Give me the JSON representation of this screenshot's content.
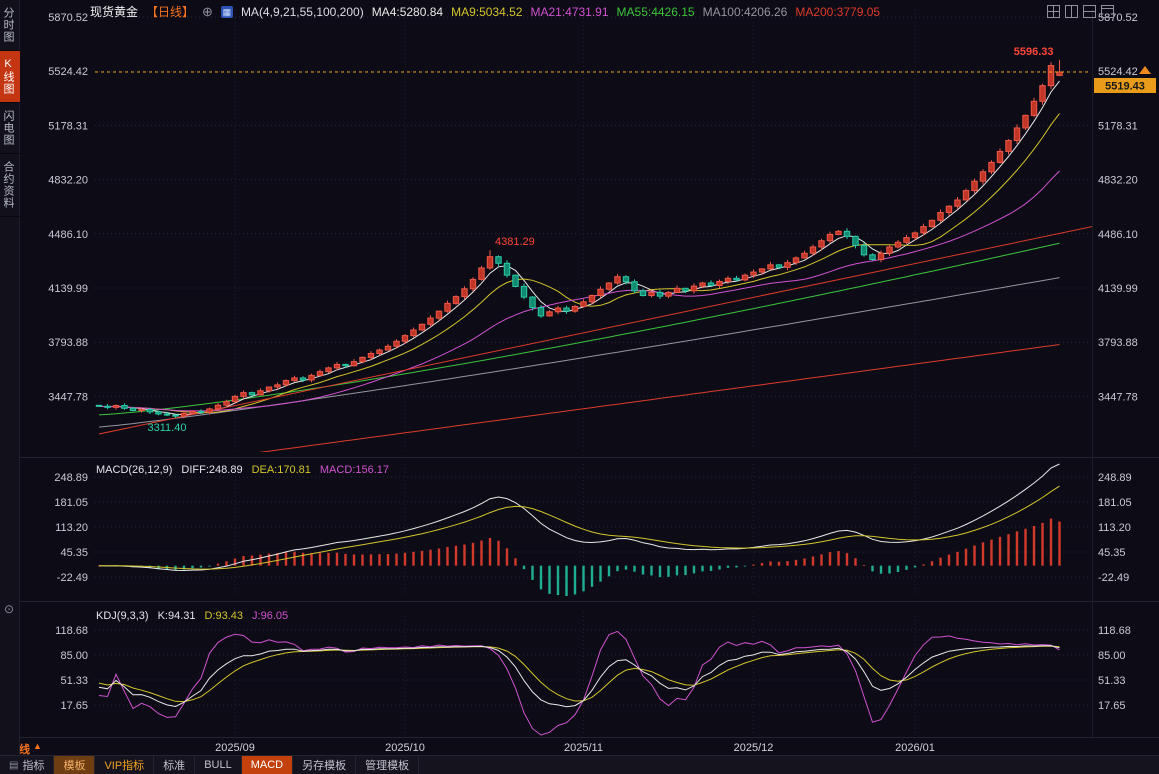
{
  "header": {
    "symbol": "现货黄金",
    "period_tag": "【日线】",
    "add_icon": "⊕",
    "ma_group": "MA(4,9,21,55,100,200)",
    "ma_values": [
      {
        "label": "MA4:5280.84",
        "color": "#e8e8e8"
      },
      {
        "label": "MA9:5034.52",
        "color": "#d4c42c"
      },
      {
        "label": "MA21:4731.91",
        "color": "#d052d0"
      },
      {
        "label": "MA55:4426.15",
        "color": "#3cc43c"
      },
      {
        "label": "MA100:4206.26",
        "color": "#95959f"
      },
      {
        "label": "MA200:3779.05",
        "color": "#dd3b2b"
      }
    ]
  },
  "sidebar": {
    "items": [
      {
        "label": "分时图",
        "active": false
      },
      {
        "label": "K线图",
        "active": true
      },
      {
        "label": "闪电图",
        "active": false
      },
      {
        "label": "合约资料",
        "active": false
      }
    ]
  },
  "macd_panel": {
    "title": "MACD(26,12,9)",
    "diff": "DIFF:248.89",
    "dea": "DEA:170.81",
    "macd": "MACD:156.17",
    "colors": {
      "title": "#e4e4ec",
      "diff": "#e4e4ec",
      "dea": "#d4c42c",
      "macd": "#d052d0"
    },
    "axis_labels": [
      "248.89",
      "181.05",
      "113.20",
      "45.35",
      "-22.49"
    ]
  },
  "kdj_panel": {
    "title": "KDJ(9,3,3)",
    "k": "K:94.31",
    "d": "D:93.43",
    "j": "J:96.05",
    "colors": {
      "title": "#e4e4ec",
      "k": "#e4e4ec",
      "d": "#d4c42c",
      "j": "#d052d0"
    },
    "axis_labels": [
      "118.68",
      "85.00",
      "51.33",
      "17.65"
    ]
  },
  "annotations": {
    "high": "5596.33",
    "peak": "4381.29",
    "low": "3311.40",
    "last_price": "5519.43"
  },
  "x_axis": {
    "period_label": "日线",
    "period_arrow": "▲"
  },
  "toolbar": {
    "items": [
      {
        "label": "指标"
      },
      {
        "label": "模板"
      },
      {
        "label": "VIP指标"
      },
      {
        "label": "标准"
      },
      {
        "label": "BULL"
      },
      {
        "label": "MACD"
      },
      {
        "label": "另存模板"
      },
      {
        "label": "管理模板"
      }
    ]
  },
  "chart_data": {
    "type": "candlestick",
    "title": "现货黄金 日线",
    "price_axis_labels": [
      "5870.52",
      "5524.42",
      "5178.31",
      "4832.20",
      "4486.10",
      "4139.99",
      "3793.88",
      "3447.78"
    ],
    "x_labels": [
      {
        "label": "2025/09",
        "index": 16
      },
      {
        "label": "2025/10",
        "index": 36
      },
      {
        "label": "2025/11",
        "index": 57
      },
      {
        "label": "2025/12",
        "index": 77
      },
      {
        "label": "2026/01",
        "index": 96
      }
    ],
    "closes": [
      3385,
      3378,
      3390,
      3372,
      3358,
      3364,
      3349,
      3336,
      3329,
      3322,
      3340,
      3352,
      3347,
      3368,
      3392,
      3415,
      3448,
      3472,
      3458,
      3484,
      3508,
      3522,
      3549,
      3566,
      3553,
      3582,
      3606,
      3630,
      3652,
      3644,
      3670,
      3697,
      3722,
      3744,
      3768,
      3800,
      3836,
      3872,
      3908,
      3948,
      3992,
      4042,
      4085,
      4135,
      4195,
      4268,
      4340,
      4298,
      4222,
      4150,
      4082,
      4015,
      3962,
      3988,
      4012,
      3992,
      4022,
      4052,
      4092,
      4132,
      4172,
      4212,
      4180,
      4122,
      4092,
      4112,
      4088,
      4112,
      4138,
      4122,
      4152,
      4172,
      4156,
      4182,
      4202,
      4192,
      4222,
      4242,
      4262,
      4288,
      4272,
      4302,
      4332,
      4362,
      4402,
      4442,
      4482,
      4502,
      4470,
      4412,
      4352,
      4322,
      4362,
      4402,
      4432,
      4462,
      4492,
      4532,
      4572,
      4622,
      4662,
      4702,
      4762,
      4822,
      4882,
      4942,
      5012,
      5082,
      5162,
      5242,
      5332,
      5432,
      5560,
      5519.43
    ],
    "key_points": {
      "low": {
        "index": 9,
        "value": 3311.4
      },
      "peak": {
        "index": 46,
        "value": 4381.29
      },
      "high": {
        "index": 113,
        "value": 5596.33
      },
      "last_open": 5498,
      "last_close": 5519.43
    },
    "ma_series": {
      "periods_computed": [
        4,
        9,
        21
      ],
      "colors": [
        "#e8e8e8",
        "#d4c42c",
        "#d052d0"
      ]
    },
    "ma_long": [
      {
        "period": 55,
        "color": "#3cc43c",
        "start": 3330,
        "end": 4426.15,
        "pow": 1.25
      },
      {
        "period": 100,
        "color": "#95959f",
        "start": 3252,
        "end": 4206.26,
        "pow": 1.12
      },
      {
        "period": 200,
        "color": "#dd3b2b",
        "start": 2952,
        "end": 3779.05,
        "pow": 1.0
      }
    ],
    "trendline": {
      "from_index": 0,
      "from_price": 3208,
      "to_index": 118,
      "to_price": 4545,
      "color": "#dd3b2b"
    },
    "macd": {
      "fast": 12,
      "slow": 26,
      "signal": 9,
      "diff": 248.89,
      "dea": 170.81,
      "macd": 156.17,
      "colors": {
        "diff_line": "#e8e8e8",
        "dea_line": "#d4c42c",
        "up": "#d23a2c",
        "down": "#1fae92"
      }
    },
    "kdj": {
      "n": 9,
      "m1": 3,
      "m2": 3,
      "k": 94.31,
      "d": 93.43,
      "j": 96.05,
      "colors": {
        "k": "#e8e8e8",
        "d": "#d4c42c",
        "j": "#d052d0"
      }
    },
    "candle_colors": {
      "up": "#ef5848",
      "up_fill": "#c13527",
      "down": "#2bcaa6",
      "down_fill": "#128a72"
    },
    "last_price_line_color": "#f0a21e"
  }
}
